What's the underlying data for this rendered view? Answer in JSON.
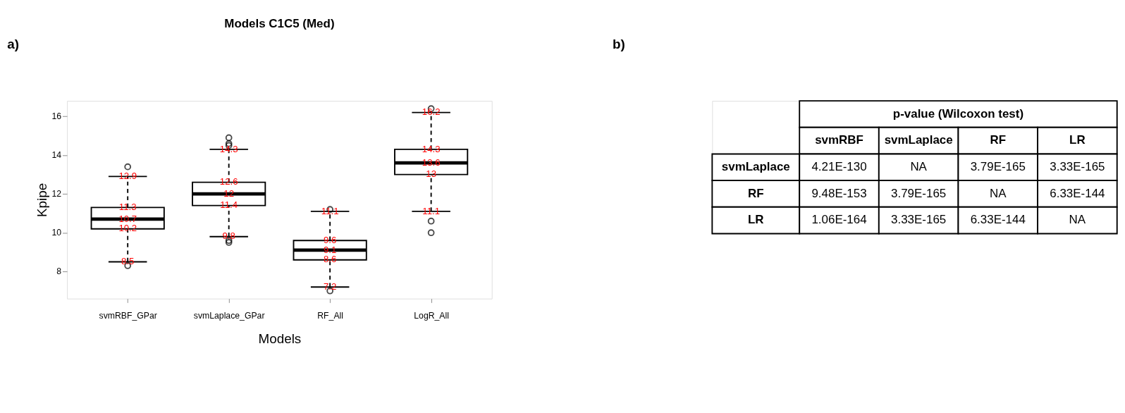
{
  "chart_data": [
    {
      "type": "box",
      "title": "Models C1C5 (Med)",
      "xlabel": "Models",
      "ylabel": "Kpipe",
      "categories": [
        "svmRBF_GPar",
        "svmLaplace_GPar",
        "RF_All",
        "LogR_All"
      ],
      "boxes": [
        {
          "low": 8.5,
          "q1": 10.2,
          "median": 10.7,
          "q3": 11.3,
          "high": 12.9,
          "outliers": [
            13.4,
            8.3
          ]
        },
        {
          "low": 9.8,
          "q1": 11.4,
          "median": 12,
          "q3": 12.6,
          "high": 14.3,
          "outliers": [
            14.9,
            14.6,
            14.5,
            9.6,
            9.5
          ]
        },
        {
          "low": 7.2,
          "q1": 8.6,
          "median": 9.1,
          "q3": 9.6,
          "high": 11.1,
          "outliers": [
            11.2,
            7.0
          ]
        },
        {
          "low": 11.1,
          "q1": 13,
          "median": 13.6,
          "q3": 14.3,
          "high": 16.2,
          "outliers": [
            16.4,
            10.6,
            10.0
          ]
        }
      ],
      "ylim": [
        6.6,
        16.8
      ],
      "yticks": [
        8,
        10,
        12,
        14,
        16
      ],
      "grid": false,
      "legend": false,
      "annotations": [
        "a)",
        {
          "text": "8.5",
          "x": "svmRBF_GPar",
          "y": 8.5
        },
        {
          "text": "10.2",
          "x": "svmRBF_GPar",
          "y": 10.2
        },
        {
          "text": "10.7",
          "x": "svmRBF_GPar",
          "y": 10.7
        },
        {
          "text": "11.3",
          "x": "svmRBF_GPar",
          "y": 11.3
        },
        {
          "text": "12.9",
          "x": "svmRBF_GPar",
          "y": 12.9
        },
        {
          "text": "9.8",
          "x": "svmLaplace_GPar",
          "y": 9.8
        },
        {
          "text": "11.4",
          "x": "svmLaplace_GPar",
          "y": 11.4
        },
        {
          "text": "12",
          "x": "svmLaplace_GPar",
          "y": 12
        },
        {
          "text": "12.6",
          "x": "svmLaplace_GPar",
          "y": 12.6
        },
        {
          "text": "14.3",
          "x": "svmLaplace_GPar",
          "y": 14.3
        },
        {
          "text": "7.2",
          "x": "RF_All",
          "y": 7.2
        },
        {
          "text": "8.6",
          "x": "RF_All",
          "y": 8.6
        },
        {
          "text": "9.1",
          "x": "RF_All",
          "y": 9.1
        },
        {
          "text": "9.6",
          "x": "RF_All",
          "y": 9.6
        },
        {
          "text": "11.1",
          "x": "RF_All",
          "y": 11.1
        },
        {
          "text": "11.1",
          "x": "LogR_All",
          "y": 11.1
        },
        {
          "text": "13",
          "x": "LogR_All",
          "y": 13
        },
        {
          "text": "13.6",
          "x": "LogR_All",
          "y": 13.6
        },
        {
          "text": "14.3",
          "x": "LogR_All",
          "y": 14.3
        },
        {
          "text": "16.2",
          "x": "LogR_All",
          "y": 16.2
        }
      ]
    },
    {
      "type": "other",
      "title": "p-value (Wilcoxon test)",
      "categories": [
        "svmRBF",
        "svmLaplace",
        "RF",
        "LR"
      ],
      "y_categories": [
        "svmLaplace",
        "RF",
        "LR"
      ],
      "cell_labels": [
        [
          "4.21E-130",
          "NA",
          "3.79E-165",
          "3.33E-165"
        ],
        [
          "9.48E-153",
          "3.79E-165",
          "NA",
          "6.33E-144"
        ],
        [
          "1.06E-164",
          "3.33E-165",
          "6.33E-144",
          "NA"
        ]
      ],
      "annotations": [
        "b)"
      ]
    }
  ]
}
